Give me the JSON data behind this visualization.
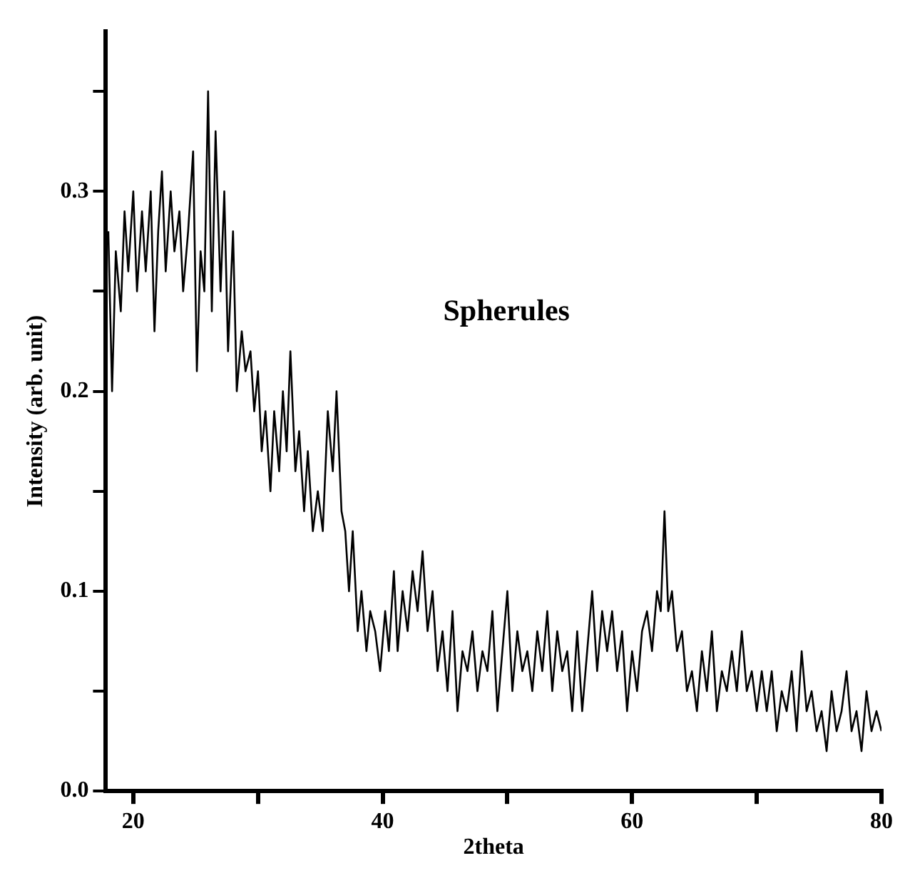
{
  "chart_data": {
    "type": "line",
    "xlabel": "2theta",
    "ylabel": "Intensity (arb. unit)",
    "annotations": [
      "Spherules"
    ],
    "xlim": [
      17.8,
      80
    ],
    "xticks": [
      20,
      {
        "value": 30,
        "label": null
      },
      40,
      {
        "value": 50,
        "label": null
      },
      60,
      {
        "value": 70,
        "label": null
      },
      80
    ],
    "ylim": [
      0,
      0.38
    ],
    "yticks": [
      {
        "value": 0,
        "label": "0.0"
      },
      {
        "value": 0.05,
        "label": null
      },
      {
        "value": 0.1,
        "label": "0.1"
      },
      {
        "value": 0.15,
        "label": null
      },
      {
        "value": 0.2,
        "label": "0.2"
      },
      {
        "value": 0.25,
        "label": null
      },
      {
        "value": 0.3,
        "label": "0.3"
      },
      {
        "value": 0.35,
        "label": null
      }
    ],
    "marker": "none",
    "line_style": "solid",
    "legend": false,
    "series": [
      {
        "color": "#000000",
        "x": [
          18,
          18.3,
          18.6,
          19,
          19.3,
          19.6,
          20,
          20.3,
          20.7,
          21,
          21.4,
          21.7,
          22,
          22.3,
          22.6,
          23,
          23.3,
          23.7,
          24,
          24.4,
          24.8,
          25.1,
          25.4,
          25.7,
          26,
          26.3,
          26.6,
          27,
          27.3,
          27.6,
          28,
          28.3,
          28.7,
          29,
          29.4,
          29.7,
          30,
          30.3,
          30.6,
          31,
          31.3,
          31.7,
          32,
          32.3,
          32.6,
          33,
          33.3,
          33.7,
          34,
          34.4,
          34.8,
          35.2,
          35.6,
          36,
          36.3,
          36.7,
          37,
          37.3,
          37.6,
          38,
          38.3,
          38.7,
          39,
          39.4,
          39.8,
          40.2,
          40.5,
          40.9,
          41.2,
          41.6,
          42,
          42.4,
          42.8,
          43.2,
          43.6,
          44,
          44.4,
          44.8,
          45.2,
          45.6,
          46,
          46.4,
          46.8,
          47.2,
          47.6,
          48,
          48.4,
          48.8,
          49.2,
          49.6,
          50,
          50.4,
          50.8,
          51.2,
          51.6,
          52,
          52.4,
          52.8,
          53.2,
          53.6,
          54,
          54.4,
          54.8,
          55.2,
          55.6,
          56,
          56.4,
          56.8,
          57.2,
          57.6,
          58,
          58.4,
          58.8,
          59.2,
          59.6,
          60,
          60.4,
          60.8,
          61.2,
          61.6,
          62,
          62.3,
          62.6,
          62.9,
          63.2,
          63.6,
          64,
          64.4,
          64.8,
          65.2,
          65.6,
          66,
          66.4,
          66.8,
          67.2,
          67.6,
          68,
          68.4,
          68.8,
          69.2,
          69.6,
          70,
          70.4,
          70.8,
          71.2,
          71.6,
          72,
          72.4,
          72.8,
          73.2,
          73.6,
          74,
          74.4,
          74.8,
          75.2,
          75.6,
          76,
          76.4,
          76.8,
          77.2,
          77.6,
          78,
          78.4,
          78.8,
          79.2,
          79.6,
          80
        ],
        "values": [
          0.28,
          0.2,
          0.27,
          0.24,
          0.29,
          0.26,
          0.3,
          0.25,
          0.29,
          0.26,
          0.3,
          0.23,
          0.28,
          0.31,
          0.26,
          0.3,
          0.27,
          0.29,
          0.25,
          0.28,
          0.32,
          0.21,
          0.27,
          0.25,
          0.35,
          0.24,
          0.33,
          0.25,
          0.3,
          0.22,
          0.28,
          0.2,
          0.23,
          0.21,
          0.22,
          0.19,
          0.21,
          0.17,
          0.19,
          0.15,
          0.19,
          0.16,
          0.2,
          0.17,
          0.22,
          0.16,
          0.18,
          0.14,
          0.17,
          0.13,
          0.15,
          0.13,
          0.19,
          0.16,
          0.2,
          0.14,
          0.13,
          0.1,
          0.13,
          0.08,
          0.1,
          0.07,
          0.09,
          0.08,
          0.06,
          0.09,
          0.07,
          0.11,
          0.07,
          0.1,
          0.08,
          0.11,
          0.09,
          0.12,
          0.08,
          0.1,
          0.06,
          0.08,
          0.05,
          0.09,
          0.04,
          0.07,
          0.06,
          0.08,
          0.05,
          0.07,
          0.06,
          0.09,
          0.04,
          0.07,
          0.1,
          0.05,
          0.08,
          0.06,
          0.07,
          0.05,
          0.08,
          0.06,
          0.09,
          0.05,
          0.08,
          0.06,
          0.07,
          0.04,
          0.08,
          0.04,
          0.07,
          0.1,
          0.06,
          0.09,
          0.07,
          0.09,
          0.06,
          0.08,
          0.04,
          0.07,
          0.05,
          0.08,
          0.09,
          0.07,
          0.1,
          0.09,
          0.14,
          0.09,
          0.1,
          0.07,
          0.08,
          0.05,
          0.06,
          0.04,
          0.07,
          0.05,
          0.08,
          0.04,
          0.06,
          0.05,
          0.07,
          0.05,
          0.08,
          0.05,
          0.06,
          0.04,
          0.06,
          0.04,
          0.06,
          0.03,
          0.05,
          0.04,
          0.06,
          0.03,
          0.07,
          0.04,
          0.05,
          0.03,
          0.04,
          0.02,
          0.05,
          0.03,
          0.04,
          0.06,
          0.03,
          0.04,
          0.02,
          0.05,
          0.03,
          0.04,
          0.03
        ]
      }
    ]
  }
}
